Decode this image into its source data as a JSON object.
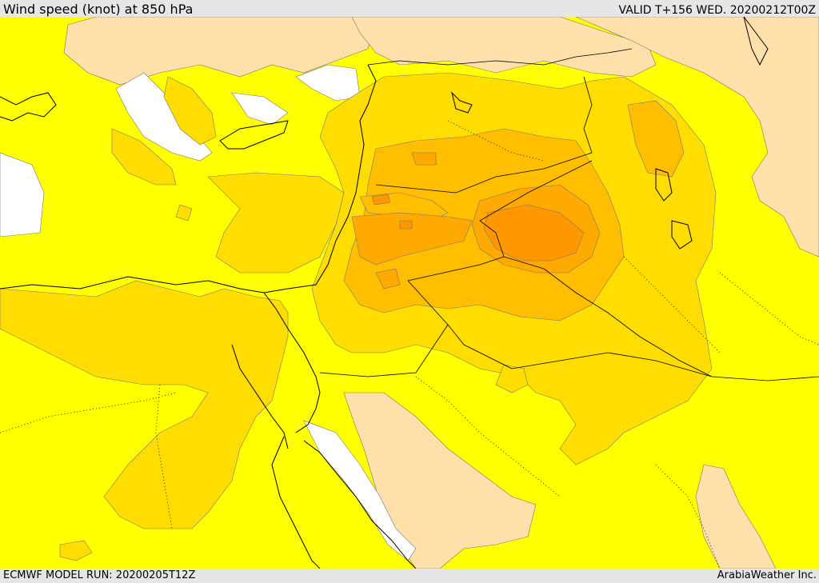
{
  "header": {
    "title": "Wind speed (knot) at 850 hPa",
    "valid": "VALID T+156 WED. 20200212T00Z"
  },
  "footer": {
    "model_run": "ECMWF MODEL RUN: 20200205T12Z",
    "credit": "ArabiaWeather Inc."
  },
  "map": {
    "field": "wind speed",
    "level": "850 hPa",
    "units": "knot",
    "colors": {
      "calm": "#ffffff",
      "light": "#ffdfaa",
      "moderate": "#ffff00",
      "fresh": "#ffdd00",
      "strong": "#ffbf00",
      "very_strong": "#ffaa00",
      "max": "#ff9800"
    }
  }
}
